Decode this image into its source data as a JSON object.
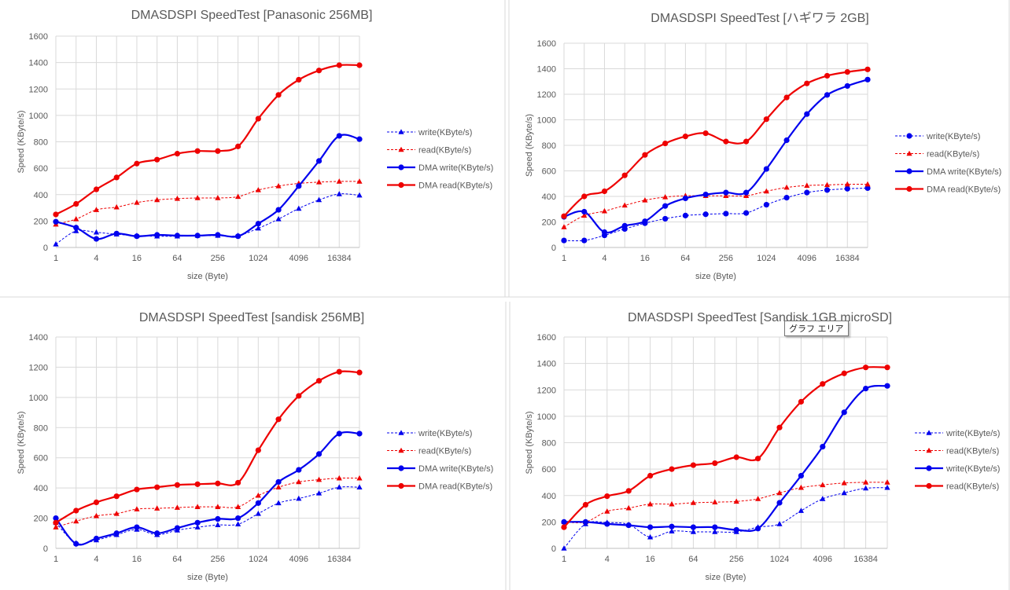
{
  "tooltip": "グラフ エリア",
  "colors": {
    "blue": "#0000EE",
    "red": "#EE0000",
    "grid": "#D9D9D9",
    "text": "#595959",
    "border": "#D9D9D9"
  },
  "chart_data": [
    {
      "type": "line",
      "title": "DMASDSPI SpeedTest  [Panasonic 256MB]",
      "xlabel": "size (Byte)",
      "ylabel": "Speed (KByte/s)",
      "ylim": [
        0,
        1600
      ],
      "ytick_step": 200,
      "x_log2": [
        0,
        1,
        2,
        3,
        4,
        5,
        6,
        7,
        8,
        9,
        10,
        11,
        12,
        13,
        14,
        15
      ],
      "x_tick_labels": [
        {
          "at": 0,
          "label": "1"
        },
        {
          "at": 2,
          "label": "4"
        },
        {
          "at": 4,
          "label": "16"
        },
        {
          "at": 6,
          "label": "64"
        },
        {
          "at": 8,
          "label": "256"
        },
        {
          "at": 10,
          "label": "1024"
        },
        {
          "at": 12,
          "label": "4096"
        },
        {
          "at": 14,
          "label": "16384"
        }
      ],
      "grid": true,
      "legend_position": "right",
      "series": [
        {
          "name": "write(KByte/s)",
          "color": "blue",
          "style": "dashed",
          "marker": "triangle",
          "values": [
            25,
            125,
            115,
            100,
            90,
            85,
            85,
            90,
            90,
            90,
            145,
            215,
            295,
            360,
            405,
            395
          ]
        },
        {
          "name": "read(KByte/s)",
          "color": "red",
          "style": "dashed",
          "marker": "triangle",
          "values": [
            175,
            215,
            285,
            305,
            340,
            360,
            370,
            375,
            375,
            385,
            435,
            465,
            485,
            495,
            500,
            500
          ]
        },
        {
          "name": "DMA write(KByte/s)",
          "color": "blue",
          "style": "solid",
          "marker": "circle",
          "values": [
            195,
            150,
            65,
            105,
            85,
            95,
            90,
            90,
            95,
            85,
            180,
            285,
            465,
            655,
            845,
            820
          ]
        },
        {
          "name": "DMA read(KByte/s)",
          "color": "red",
          "style": "solid",
          "marker": "circle",
          "values": [
            250,
            330,
            440,
            530,
            635,
            665,
            710,
            730,
            730,
            765,
            975,
            1155,
            1270,
            1340,
            1380,
            1380
          ]
        }
      ]
    },
    {
      "type": "line",
      "title": "DMASDSPI SpeedTest [ハギワラ 2GB]",
      "xlabel": "size (Byte)",
      "ylabel": "Speed (KByte/s)",
      "ylim": [
        0,
        1600
      ],
      "ytick_step": 200,
      "x_log2": [
        0,
        1,
        2,
        3,
        4,
        5,
        6,
        7,
        8,
        9,
        10,
        11,
        12,
        13,
        14,
        15
      ],
      "x_tick_labels": [
        {
          "at": 0,
          "label": "1"
        },
        {
          "at": 2,
          "label": "4"
        },
        {
          "at": 4,
          "label": "16"
        },
        {
          "at": 6,
          "label": "64"
        },
        {
          "at": 8,
          "label": "256"
        },
        {
          "at": 10,
          "label": "1024"
        },
        {
          "at": 12,
          "label": "4096"
        },
        {
          "at": 14,
          "label": "16384"
        }
      ],
      "grid": true,
      "legend_position": "right",
      "series": [
        {
          "name": "write(KByte/s)",
          "color": "blue",
          "style": "dashed",
          "marker": "circle",
          "values": [
            55,
            55,
            95,
            145,
            190,
            225,
            250,
            260,
            265,
            270,
            335,
            390,
            430,
            450,
            460,
            465
          ]
        },
        {
          "name": "read(KByte/s)",
          "color": "red",
          "style": "dashed",
          "marker": "triangle",
          "values": [
            160,
            250,
            285,
            330,
            370,
            395,
            405,
            405,
            405,
            405,
            440,
            470,
            485,
            490,
            495,
            495
          ]
        },
        {
          "name": "DMA write(KByte/s)",
          "color": "blue",
          "style": "solid",
          "marker": "circle",
          "values": [
            240,
            280,
            120,
            170,
            205,
            325,
            385,
            415,
            430,
            430,
            615,
            840,
            1045,
            1195,
            1265,
            1315
          ]
        },
        {
          "name": "DMA read(KByte/s)",
          "color": "red",
          "style": "solid",
          "marker": "circle",
          "values": [
            245,
            400,
            440,
            565,
            725,
            815,
            870,
            895,
            830,
            830,
            1005,
            1175,
            1285,
            1345,
            1375,
            1395
          ]
        }
      ]
    },
    {
      "type": "line",
      "title": "DMASDSPI SpeedTest [sandisk 256MB]",
      "xlabel": "size (Byte)",
      "ylabel": "Speed (KByte/s)",
      "ylim": [
        0,
        1400
      ],
      "ytick_step": 200,
      "x_log2": [
        0,
        1,
        2,
        3,
        4,
        5,
        6,
        7,
        8,
        9,
        10,
        11,
        12,
        13,
        14,
        15
      ],
      "x_tick_labels": [
        {
          "at": 0,
          "label": "1"
        },
        {
          "at": 2,
          "label": "4"
        },
        {
          "at": 4,
          "label": "16"
        },
        {
          "at": 6,
          "label": "64"
        },
        {
          "at": 8,
          "label": "256"
        },
        {
          "at": 10,
          "label": "1024"
        },
        {
          "at": 12,
          "label": "4096"
        },
        {
          "at": 14,
          "label": "16384"
        }
      ],
      "grid": true,
      "legend_position": "right",
      "series": [
        {
          "name": "write(KByte/s)",
          "color": "blue",
          "style": "dashed",
          "marker": "triangle",
          "values": [
            170,
            35,
            55,
            90,
            125,
            90,
            120,
            140,
            155,
            160,
            230,
            300,
            330,
            365,
            405,
            405
          ]
        },
        {
          "name": "read(KByte/s)",
          "color": "red",
          "style": "dashed",
          "marker": "triangle",
          "values": [
            140,
            180,
            215,
            230,
            260,
            265,
            270,
            275,
            275,
            275,
            350,
            405,
            440,
            455,
            465,
            465
          ]
        },
        {
          "name": "DMA write(KByte/s)",
          "color": "blue",
          "style": "solid",
          "marker": "circle",
          "values": [
            200,
            30,
            65,
            100,
            140,
            100,
            135,
            170,
            195,
            200,
            300,
            440,
            520,
            625,
            760,
            760
          ]
        },
        {
          "name": "DMA read(KByte/s)",
          "color": "red",
          "style": "solid",
          "marker": "circle",
          "values": [
            170,
            250,
            305,
            345,
            390,
            405,
            420,
            425,
            430,
            435,
            650,
            855,
            1010,
            1110,
            1170,
            1165
          ]
        }
      ]
    },
    {
      "type": "line",
      "title": "DMASDSPI SpeedTest [Sandisk 1GB microSD]",
      "xlabel": "size (Byte)",
      "ylabel": "Speed (KByte/s)",
      "ylim": [
        0,
        1600
      ],
      "ytick_step": 200,
      "x_log2": [
        0,
        1,
        2,
        3,
        4,
        5,
        6,
        7,
        8,
        9,
        10,
        11,
        12,
        13,
        14,
        15
      ],
      "x_tick_labels": [
        {
          "at": 0,
          "label": "1"
        },
        {
          "at": 2,
          "label": "4"
        },
        {
          "at": 4,
          "label": "16"
        },
        {
          "at": 6,
          "label": "64"
        },
        {
          "at": 8,
          "label": "256"
        },
        {
          "at": 10,
          "label": "1024"
        },
        {
          "at": 12,
          "label": "4096"
        },
        {
          "at": 14,
          "label": "16384"
        }
      ],
      "grid": true,
      "legend_position": "right",
      "series": [
        {
          "name": "write(KByte/s)",
          "color": "blue",
          "style": "dashed",
          "marker": "triangle",
          "values": [
            0,
            185,
            195,
            180,
            85,
            130,
            125,
            125,
            125,
            160,
            185,
            285,
            375,
            420,
            455,
            460
          ]
        },
        {
          "name": "read(KByte/s)",
          "color": "red",
          "style": "dashed",
          "marker": "triangle",
          "values": [
            200,
            200,
            280,
            305,
            335,
            335,
            345,
            350,
            355,
            375,
            420,
            460,
            480,
            495,
            500,
            500
          ]
        },
        {
          "name": "write(KByte/s)",
          "color": "blue",
          "style": "solid",
          "marker": "circle",
          "values": [
            200,
            200,
            185,
            175,
            160,
            165,
            160,
            160,
            140,
            150,
            345,
            550,
            770,
            1030,
            1210,
            1230
          ]
        },
        {
          "name": "read(KByte/s)",
          "color": "red",
          "style": "solid",
          "marker": "circle",
          "values": [
            160,
            330,
            395,
            435,
            550,
            600,
            630,
            645,
            690,
            680,
            915,
            1110,
            1245,
            1325,
            1370,
            1370
          ]
        }
      ]
    }
  ]
}
